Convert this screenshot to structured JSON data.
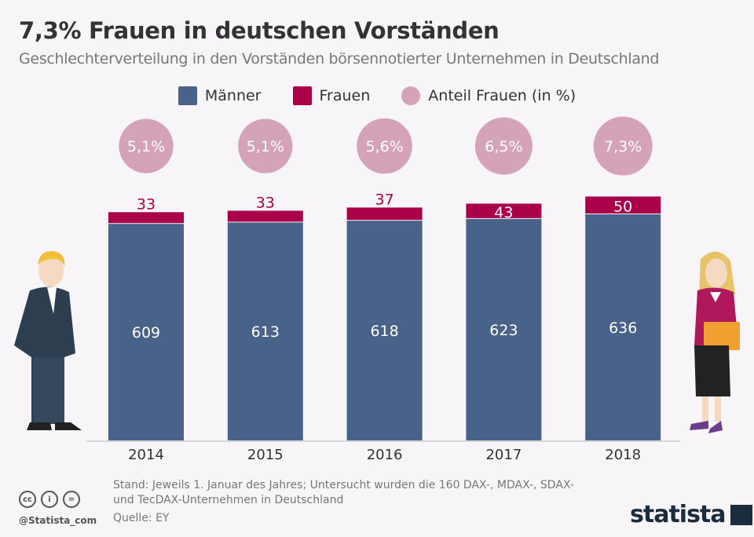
{
  "header": {
    "title": "7,3% Frauen in deutschen Vorständen",
    "subtitle": "Geschlechterverteilung in den Vorständen börsennotierter Unternehmen in Deutschland"
  },
  "chart_data": {
    "type": "bar",
    "stacked": true,
    "categories": [
      "2014",
      "2015",
      "2016",
      "2017",
      "2018"
    ],
    "series": [
      {
        "name": "Männer",
        "values": [
          609,
          613,
          618,
          623,
          636
        ],
        "color": "#48628a"
      },
      {
        "name": "Frauen",
        "values": [
          33,
          33,
          37,
          43,
          50
        ],
        "color": "#aa0049"
      }
    ],
    "share": {
      "name": "Anteil Frauen (in %)",
      "labels": [
        "5,1%",
        "5,1%",
        "5,6%",
        "6,5%",
        "7,3%"
      ],
      "values": [
        5.1,
        5.1,
        5.6,
        6.5,
        7.3
      ],
      "color": "#d5a3b8"
    },
    "legend": "top",
    "grid": false
  },
  "footer": {
    "note_line1": "Stand: Jeweils 1. Januar des Jahres; Untersucht wurden die 160 DAX-, MDAX-, SDAX-",
    "note_line2": "und TecDAX-Unternehmen in Deutschland",
    "source": "Quelle: EY",
    "handle": "@Statista_com",
    "cc_icons": [
      "cc",
      "i",
      "="
    ],
    "logo": "statista"
  }
}
